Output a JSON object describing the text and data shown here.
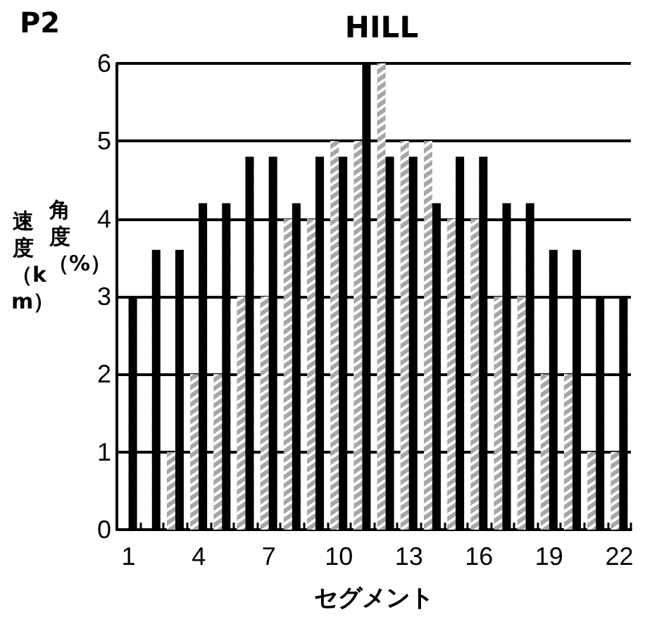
{
  "chart_data": {
    "type": "bar",
    "title": "HILL",
    "xlabel": "セグメント",
    "ylabel": "速度（km）",
    "y2label": "角度（%）",
    "annotations": [
      "P2"
    ],
    "categories": [
      "1",
      null,
      null,
      "4",
      null,
      null,
      "7",
      null,
      null,
      "10",
      null,
      null,
      "13",
      null,
      null,
      "16",
      null,
      null,
      "19",
      null,
      null,
      "22"
    ],
    "series": [
      {
        "color": "#a6a6a6",
        "values": [
          0,
          0,
          1,
          2,
          2,
          3,
          3,
          4,
          4,
          5,
          5,
          6,
          5,
          5,
          4,
          4,
          3,
          3,
          2,
          2,
          1,
          1
        ]
      },
      {
        "color": "#000000",
        "values": [
          3,
          3.6,
          3.6,
          4.2,
          4.2,
          4.8,
          4.8,
          4.2,
          4.8,
          4.8,
          6,
          4.8,
          4.8,
          4.2,
          4.8,
          4.8,
          4.2,
          4.2,
          3.6,
          3.6,
          3,
          3
        ]
      }
    ],
    "ylim": [
      0,
      6
    ],
    "yticks": [
      0,
      1,
      2,
      3,
      4,
      5,
      6
    ],
    "grid": "y"
  }
}
